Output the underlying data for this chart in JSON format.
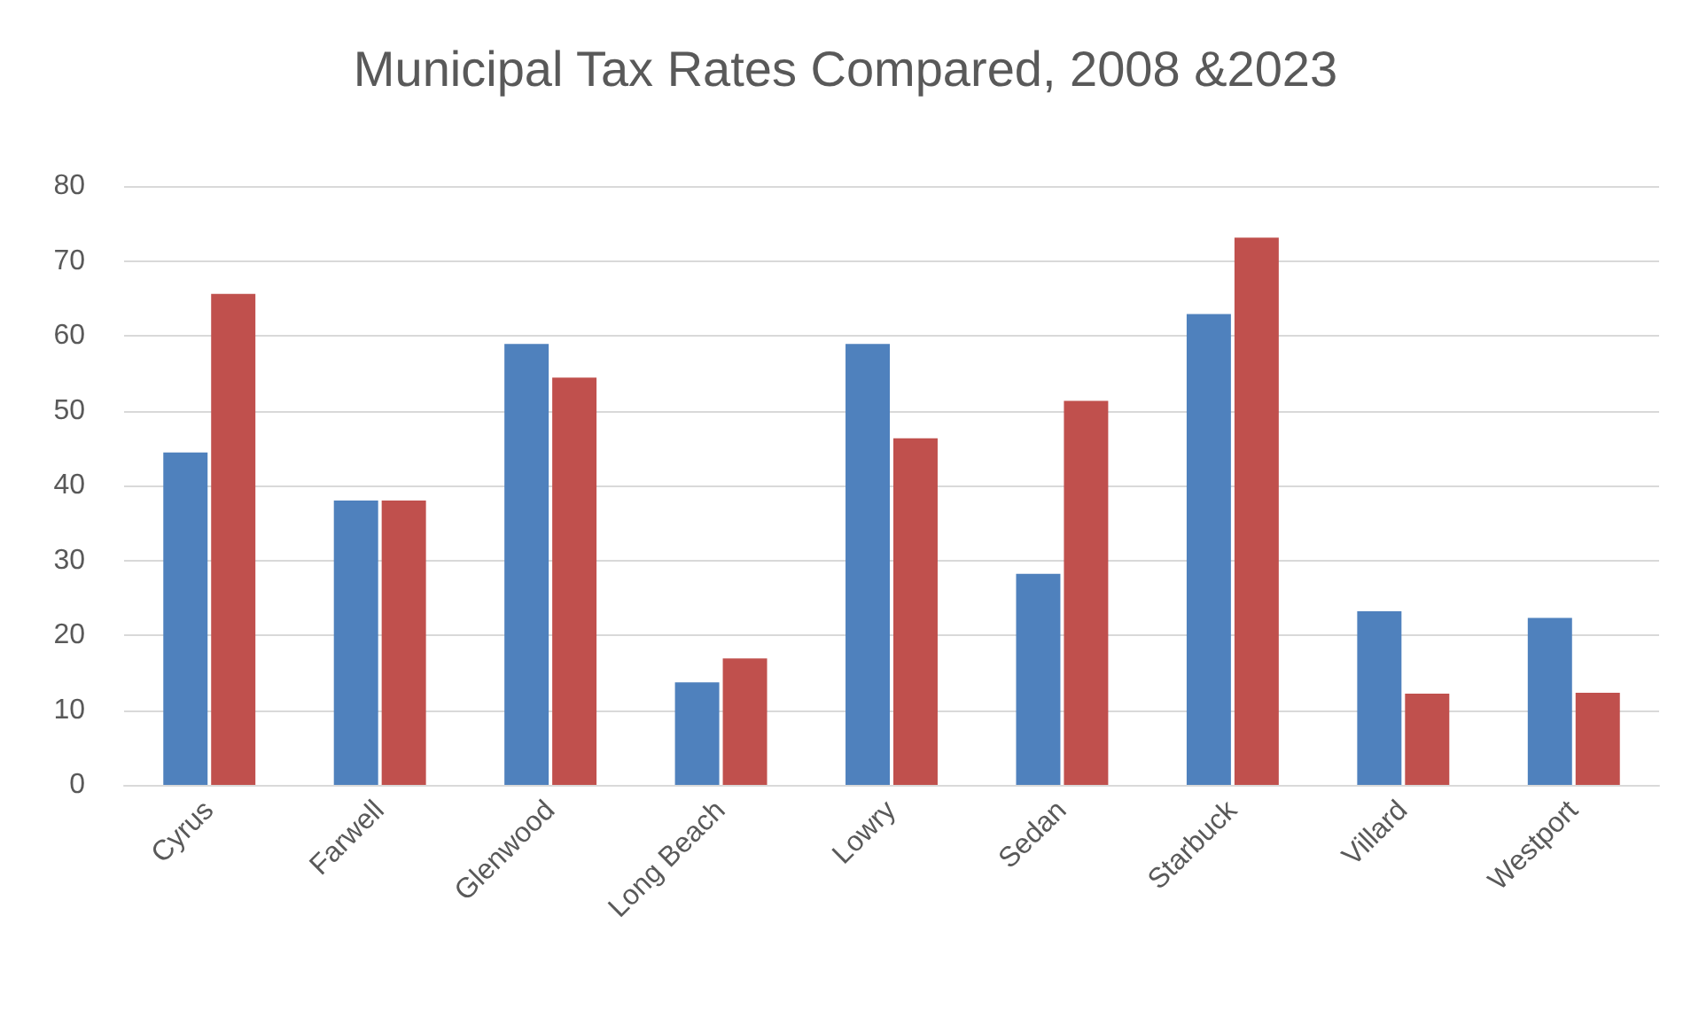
{
  "chart_data": {
    "type": "bar",
    "title": "Municipal Tax Rates Compared, 2008 &2023",
    "categories": [
      "Cyrus",
      "Farwell",
      "Glenwood",
      "Long Beach",
      "Lowry",
      "Sedan",
      "Starbuck",
      "Villard",
      "Westport"
    ],
    "series": [
      {
        "color": "#4f81bd",
        "values": [
          44.4,
          38,
          58.9,
          13.7,
          58.9,
          28.2,
          62.9,
          23.2,
          22.3
        ]
      },
      {
        "color": "#c0504d",
        "values": [
          65.6,
          38,
          54.4,
          16.9,
          46.3,
          51.3,
          73.1,
          12.2,
          12.3
        ]
      }
    ],
    "ylim": [
      0,
      80
    ],
    "yticks": [
      0,
      10,
      20,
      30,
      40,
      50,
      60,
      70,
      80
    ],
    "grid": "y"
  }
}
